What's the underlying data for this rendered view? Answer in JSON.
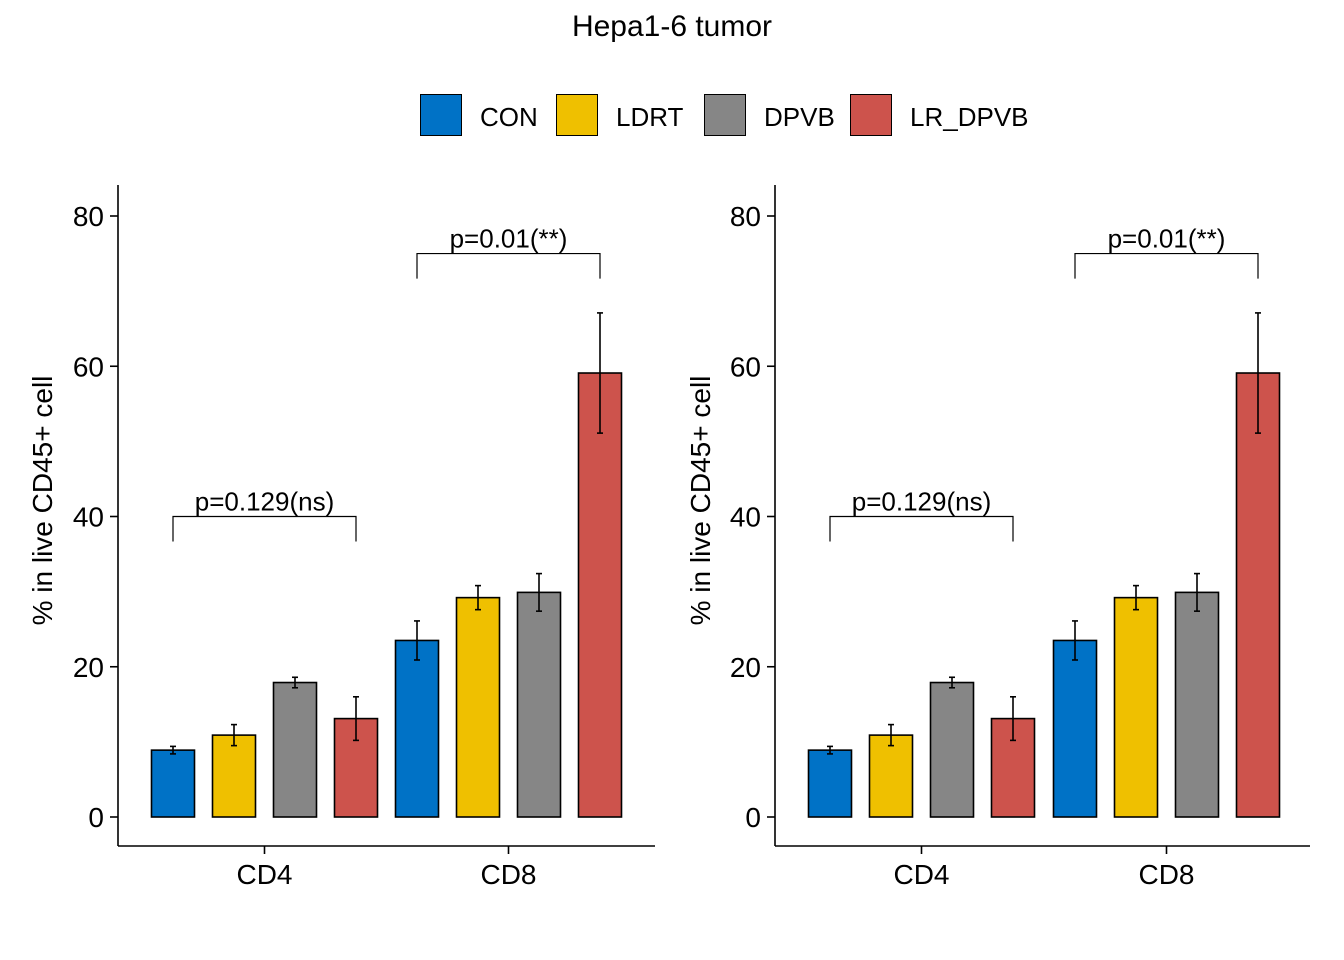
{
  "title": "Hepa1-6 tumor",
  "legend": {
    "items": [
      {
        "label": "CON",
        "color": "#0072C6"
      },
      {
        "label": "LDRT",
        "color": "#EFC000"
      },
      {
        "label": "DPVB",
        "color": "#868686"
      },
      {
        "label": "LR_DPVB",
        "color": "#CD534C"
      }
    ]
  },
  "chart_data": [
    {
      "type": "bar",
      "title": "",
      "xlabel": "",
      "ylabel": "% in live CD45+ cell",
      "ylim": [
        0,
        80
      ],
      "yticks": [
        0,
        20,
        40,
        60,
        80
      ],
      "categories": [
        "CD4",
        "CD8"
      ],
      "series": [
        {
          "name": "CON",
          "values": [
            8.9,
            23.5
          ],
          "errors": [
            0.5,
            2.6
          ]
        },
        {
          "name": "LDRT",
          "values": [
            10.9,
            29.2
          ],
          "errors": [
            1.4,
            1.6
          ]
        },
        {
          "name": "DPVB",
          "values": [
            17.9,
            29.9
          ],
          "errors": [
            0.7,
            2.5
          ]
        },
        {
          "name": "LR_DPVB",
          "values": [
            13.1,
            59.1
          ],
          "errors": [
            2.9,
            8.0
          ]
        }
      ],
      "annotations": [
        {
          "text": "p=0.129(ns)",
          "category": "CD4",
          "from_series": 0,
          "to_series": 3,
          "y": 40
        },
        {
          "text": "p=0.01(**)",
          "category": "CD8",
          "from_series": 0,
          "to_series": 3,
          "y": 75
        }
      ],
      "grid": false,
      "legend_position": "top"
    },
    {
      "type": "bar",
      "title": "",
      "xlabel": "",
      "ylabel": "% in live CD45+ cell",
      "ylim": [
        0,
        80
      ],
      "yticks": [
        0,
        20,
        40,
        60,
        80
      ],
      "categories": [
        "CD4",
        "CD8"
      ],
      "series": [
        {
          "name": "CON",
          "values": [
            8.9,
            23.5
          ],
          "errors": [
            0.5,
            2.6
          ]
        },
        {
          "name": "LDRT",
          "values": [
            10.9,
            29.2
          ],
          "errors": [
            1.4,
            1.6
          ]
        },
        {
          "name": "DPVB",
          "values": [
            17.9,
            29.9
          ],
          "errors": [
            0.7,
            2.5
          ]
        },
        {
          "name": "LR_DPVB",
          "values": [
            13.1,
            59.1
          ],
          "errors": [
            2.9,
            8.0
          ]
        }
      ],
      "annotations": [
        {
          "text": "p=0.129(ns)",
          "category": "CD4",
          "from_series": 0,
          "to_series": 3,
          "y": 40
        },
        {
          "text": "p=0.01(**)",
          "category": "CD8",
          "from_series": 0,
          "to_series": 3,
          "y": 75
        }
      ],
      "grid": false,
      "legend_position": "top"
    }
  ]
}
